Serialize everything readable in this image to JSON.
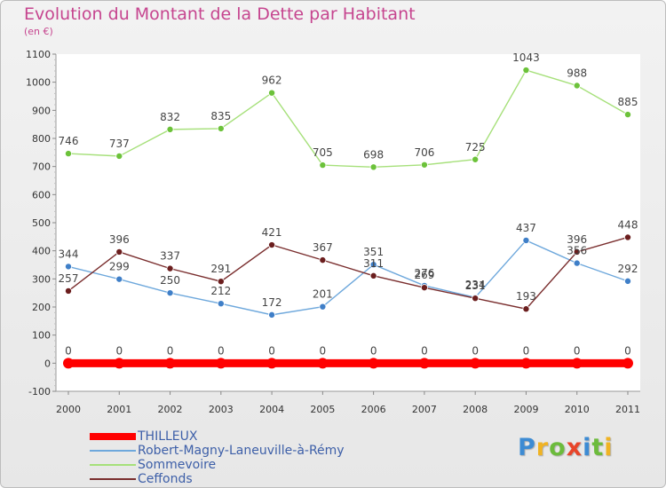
{
  "header": {
    "title": "Evolution du Montant de la Dette par Habitant",
    "subtitle": "(en €)"
  },
  "logo": {
    "text": "Proxiti"
  },
  "chart_data": {
    "type": "line",
    "title": "Evolution du Montant de la Dette par Habitant",
    "subtitle": "(en €)",
    "x": [
      "2000",
      "2001",
      "2002",
      "2003",
      "2004",
      "2005",
      "2006",
      "2007",
      "2008",
      "2009",
      "2010",
      "2011"
    ],
    "y_ticks": [
      "-100",
      "0",
      "100",
      "200",
      "300",
      "400",
      "500",
      "600",
      "700",
      "800",
      "900",
      "1000",
      "1100"
    ],
    "ylim": [
      -100,
      1100
    ],
    "grid": false,
    "legend_position": "bottom-left",
    "series": [
      {
        "name": "THILLEUX",
        "color": "#ff0000",
        "point_color": "#ff0000",
        "values": [
          0,
          0,
          0,
          0,
          0,
          0,
          0,
          0,
          0,
          0,
          0,
          0
        ],
        "labels": [
          "0",
          "0",
          "0",
          "0",
          "0",
          "0",
          "0",
          "0",
          "0",
          "0",
          "0",
          "0"
        ]
      },
      {
        "name": "Robert-Magny-Laneuville-à-Rémy",
        "color": "#6ea8dc",
        "point_color": "#3f7fc8",
        "values": [
          344,
          299,
          250,
          212,
          172,
          201,
          351,
          276,
          234,
          437,
          356,
          292
        ],
        "labels": [
          "344",
          "299",
          "250",
          "212",
          "172",
          "201",
          "351",
          "276",
          "234",
          "437",
          "356",
          "292"
        ]
      },
      {
        "name": "Sommevoire",
        "color": "#a6e07a",
        "point_color": "#6cc23a",
        "values": [
          746,
          737,
          832,
          835,
          962,
          705,
          698,
          706,
          725,
          1043,
          988,
          885
        ],
        "labels": [
          "746",
          "737",
          "832",
          "835",
          "962",
          "705",
          "698",
          "706",
          "725",
          "1043",
          "988",
          "885"
        ]
      },
      {
        "name": "Ceffonds",
        "color": "#7a2e2e",
        "point_color": "#6b1e1e",
        "values": [
          257,
          396,
          337,
          291,
          421,
          367,
          311,
          269,
          231,
          193,
          396,
          448
        ],
        "labels": [
          "257",
          "396",
          "337",
          "291",
          "421",
          "367",
          "311",
          "269",
          "231",
          "193",
          "396",
          "448"
        ]
      }
    ]
  }
}
